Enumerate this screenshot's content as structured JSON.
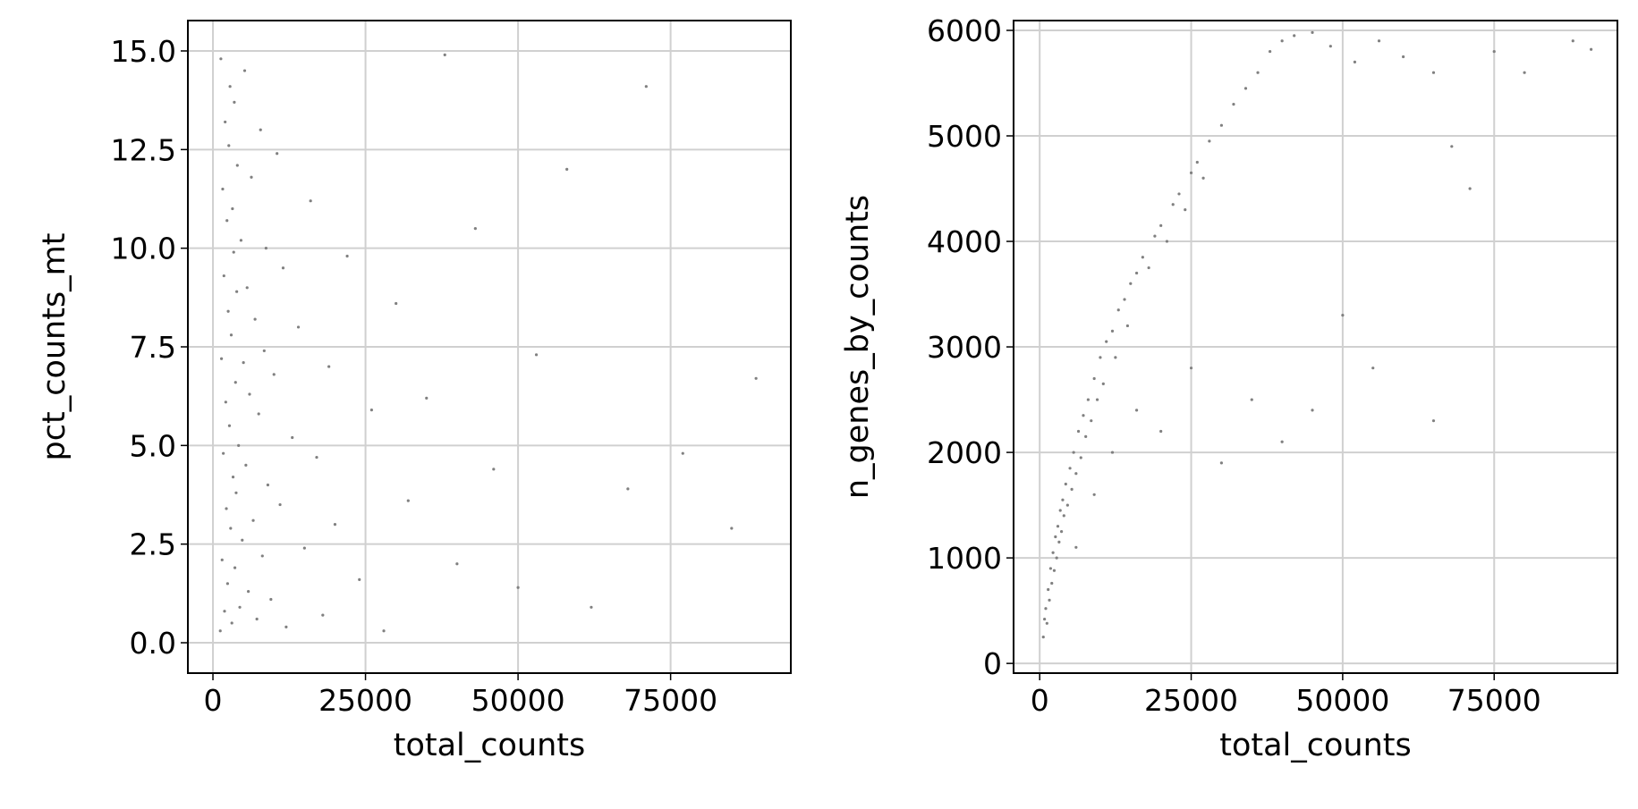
{
  "chart_data": [
    {
      "type": "scatter",
      "x_label": "total_counts",
      "y_label": "pct_counts_mt",
      "color": "#808080",
      "grid": true,
      "xlim": [
        -4110,
        94700
      ],
      "ylim": [
        -0.77,
        15.77
      ],
      "xticks": [
        0,
        25000,
        50000,
        75000
      ],
      "yticks": [
        {
          "value": 0,
          "label": "0.0"
        },
        {
          "value": 2.5,
          "label": "2.5"
        },
        {
          "value": 5,
          "label": "5.0"
        },
        {
          "value": 7.5,
          "label": "7.5"
        },
        {
          "value": 10,
          "label": "10.0"
        },
        {
          "value": 12.5,
          "label": "12.5"
        },
        {
          "value": 15,
          "label": "15.0"
        }
      ],
      "x": [
        1200,
        1300,
        1400,
        1500,
        1600,
        1700,
        1800,
        1900,
        2000,
        2100,
        2200,
        2300,
        2400,
        2500,
        2600,
        2700,
        2800,
        2900,
        3000,
        3100,
        3200,
        3300,
        3400,
        3500,
        3600,
        3700,
        3800,
        3900,
        4000,
        4200,
        4400,
        4600,
        4800,
        5000,
        5200,
        5400,
        5600,
        5800,
        6000,
        6300,
        6600,
        6900,
        7200,
        7500,
        7800,
        8100,
        8400,
        8700,
        9000,
        9500,
        10000,
        10500,
        11000,
        11500,
        12000,
        13000,
        14000,
        15000,
        16000,
        17000,
        18000,
        19000,
        20000,
        22000,
        24000,
        26000,
        28000,
        30000,
        32000,
        35000,
        38000,
        40000,
        43000,
        46000,
        50000,
        53000,
        58000,
        62000,
        68000,
        71000,
        77000,
        85000,
        89000
      ],
      "y": [
        0.3,
        14.8,
        7.2,
        2.1,
        11.5,
        4.8,
        9.3,
        0.8,
        13.2,
        6.1,
        3.4,
        10.7,
        1.5,
        8.4,
        12.6,
        5.5,
        14.1,
        2.9,
        7.8,
        0.5,
        11.0,
        4.2,
        9.9,
        13.7,
        1.9,
        6.6,
        3.8,
        8.9,
        12.1,
        5.0,
        0.9,
        10.2,
        2.6,
        7.1,
        14.5,
        4.5,
        9.0,
        1.3,
        6.3,
        11.8,
        3.1,
        8.2,
        0.6,
        5.8,
        13.0,
        2.2,
        7.4,
        10.0,
        4.0,
        1.1,
        6.8,
        12.4,
        3.5,
        9.5,
        0.4,
        5.2,
        8.0,
        2.4,
        11.2,
        4.7,
        0.7,
        7.0,
        3.0,
        9.8,
        1.6,
        5.9,
        0.3,
        8.6,
        3.6,
        6.2,
        14.9,
        2.0,
        10.5,
        4.4,
        1.4,
        7.3,
        12.0,
        0.9,
        3.9,
        14.1,
        4.8,
        2.9,
        6.7
      ]
    },
    {
      "type": "scatter",
      "x_label": "total_counts",
      "y_label": "n_genes_by_counts",
      "color": "#808080",
      "grid": true,
      "xlim": [
        -4310,
        95340
      ],
      "ylim": [
        -92,
        6093
      ],
      "xticks": [
        0,
        25000,
        50000,
        75000
      ],
      "yticks": [
        0,
        1000,
        2000,
        3000,
        4000,
        5000,
        6000
      ],
      "x": [
        600,
        800,
        1000,
        1200,
        1400,
        1600,
        1800,
        2000,
        2200,
        2400,
        2600,
        2800,
        3000,
        3200,
        3400,
        3600,
        3800,
        4000,
        4300,
        4600,
        5000,
        5300,
        5600,
        6000,
        6400,
        6800,
        7200,
        7600,
        8000,
        8500,
        9000,
        9500,
        10000,
        10500,
        11000,
        12000,
        12500,
        13000,
        14000,
        14500,
        15000,
        16000,
        17000,
        18000,
        19000,
        20000,
        21000,
        22000,
        23000,
        24000,
        25000,
        26000,
        27000,
        28000,
        30000,
        32000,
        34000,
        36000,
        38000,
        40000,
        42000,
        45000,
        48000,
        52000,
        56000,
        60000,
        65000,
        68000,
        71000,
        75000,
        80000,
        88000,
        91000,
        6000,
        9000,
        12000,
        16000,
        20000,
        25000,
        30000,
        35000,
        40000,
        45000,
        50000,
        55000,
        65000
      ],
      "y": [
        250,
        420,
        520,
        380,
        700,
        600,
        900,
        760,
        1050,
        880,
        1200,
        1000,
        1300,
        1150,
        1450,
        1250,
        1550,
        1400,
        1700,
        1500,
        1850,
        1650,
        2000,
        1800,
        2200,
        1950,
        2350,
        2150,
        2500,
        2300,
        2700,
        2500,
        2900,
        2650,
        3050,
        3150,
        2900,
        3350,
        3450,
        3200,
        3600,
        3700,
        3850,
        3750,
        4050,
        4150,
        4000,
        4350,
        4450,
        4300,
        4650,
        4750,
        4600,
        4950,
        5100,
        5300,
        5450,
        5600,
        5800,
        5900,
        5950,
        5980,
        5850,
        5700,
        5900,
        5750,
        5600,
        4900,
        4500,
        5800,
        5600,
        5900,
        5820,
        1100,
        1600,
        2000,
        2400,
        2200,
        2800,
        1900,
        2500,
        2100,
        2400,
        3300,
        2800,
        2300
      ]
    }
  ]
}
